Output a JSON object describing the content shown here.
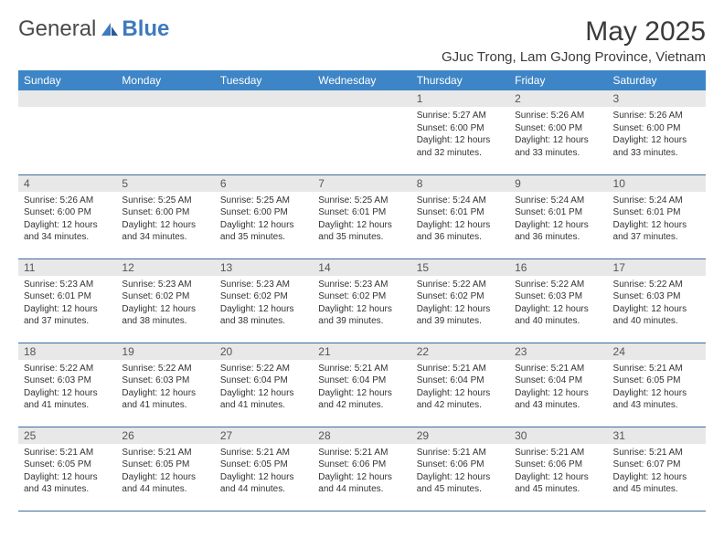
{
  "logo": {
    "text1": "General",
    "text2": "Blue"
  },
  "title": "May 2025",
  "location": "GJuc Trong, Lam GJong Province, Vietnam",
  "colors": {
    "header_bg": "#3d85c6",
    "header_text": "#ffffff",
    "daynum_bg": "#e8e8e8",
    "daynum_text": "#555555",
    "border": "#3d6b9e",
    "body_text": "#333333",
    "logo_gray": "#4a4a4a",
    "logo_blue": "#3d7abf"
  },
  "weekdays": [
    "Sunday",
    "Monday",
    "Tuesday",
    "Wednesday",
    "Thursday",
    "Friday",
    "Saturday"
  ],
  "weeks": [
    [
      null,
      null,
      null,
      null,
      {
        "n": "1",
        "sr": "5:27 AM",
        "ss": "6:00 PM",
        "dl": "12 hours and 32 minutes."
      },
      {
        "n": "2",
        "sr": "5:26 AM",
        "ss": "6:00 PM",
        "dl": "12 hours and 33 minutes."
      },
      {
        "n": "3",
        "sr": "5:26 AM",
        "ss": "6:00 PM",
        "dl": "12 hours and 33 minutes."
      }
    ],
    [
      {
        "n": "4",
        "sr": "5:26 AM",
        "ss": "6:00 PM",
        "dl": "12 hours and 34 minutes."
      },
      {
        "n": "5",
        "sr": "5:25 AM",
        "ss": "6:00 PM",
        "dl": "12 hours and 34 minutes."
      },
      {
        "n": "6",
        "sr": "5:25 AM",
        "ss": "6:00 PM",
        "dl": "12 hours and 35 minutes."
      },
      {
        "n": "7",
        "sr": "5:25 AM",
        "ss": "6:01 PM",
        "dl": "12 hours and 35 minutes."
      },
      {
        "n": "8",
        "sr": "5:24 AM",
        "ss": "6:01 PM",
        "dl": "12 hours and 36 minutes."
      },
      {
        "n": "9",
        "sr": "5:24 AM",
        "ss": "6:01 PM",
        "dl": "12 hours and 36 minutes."
      },
      {
        "n": "10",
        "sr": "5:24 AM",
        "ss": "6:01 PM",
        "dl": "12 hours and 37 minutes."
      }
    ],
    [
      {
        "n": "11",
        "sr": "5:23 AM",
        "ss": "6:01 PM",
        "dl": "12 hours and 37 minutes."
      },
      {
        "n": "12",
        "sr": "5:23 AM",
        "ss": "6:02 PM",
        "dl": "12 hours and 38 minutes."
      },
      {
        "n": "13",
        "sr": "5:23 AM",
        "ss": "6:02 PM",
        "dl": "12 hours and 38 minutes."
      },
      {
        "n": "14",
        "sr": "5:23 AM",
        "ss": "6:02 PM",
        "dl": "12 hours and 39 minutes."
      },
      {
        "n": "15",
        "sr": "5:22 AM",
        "ss": "6:02 PM",
        "dl": "12 hours and 39 minutes."
      },
      {
        "n": "16",
        "sr": "5:22 AM",
        "ss": "6:03 PM",
        "dl": "12 hours and 40 minutes."
      },
      {
        "n": "17",
        "sr": "5:22 AM",
        "ss": "6:03 PM",
        "dl": "12 hours and 40 minutes."
      }
    ],
    [
      {
        "n": "18",
        "sr": "5:22 AM",
        "ss": "6:03 PM",
        "dl": "12 hours and 41 minutes."
      },
      {
        "n": "19",
        "sr": "5:22 AM",
        "ss": "6:03 PM",
        "dl": "12 hours and 41 minutes."
      },
      {
        "n": "20",
        "sr": "5:22 AM",
        "ss": "6:04 PM",
        "dl": "12 hours and 41 minutes."
      },
      {
        "n": "21",
        "sr": "5:21 AM",
        "ss": "6:04 PM",
        "dl": "12 hours and 42 minutes."
      },
      {
        "n": "22",
        "sr": "5:21 AM",
        "ss": "6:04 PM",
        "dl": "12 hours and 42 minutes."
      },
      {
        "n": "23",
        "sr": "5:21 AM",
        "ss": "6:04 PM",
        "dl": "12 hours and 43 minutes."
      },
      {
        "n": "24",
        "sr": "5:21 AM",
        "ss": "6:05 PM",
        "dl": "12 hours and 43 minutes."
      }
    ],
    [
      {
        "n": "25",
        "sr": "5:21 AM",
        "ss": "6:05 PM",
        "dl": "12 hours and 43 minutes."
      },
      {
        "n": "26",
        "sr": "5:21 AM",
        "ss": "6:05 PM",
        "dl": "12 hours and 44 minutes."
      },
      {
        "n": "27",
        "sr": "5:21 AM",
        "ss": "6:05 PM",
        "dl": "12 hours and 44 minutes."
      },
      {
        "n": "28",
        "sr": "5:21 AM",
        "ss": "6:06 PM",
        "dl": "12 hours and 44 minutes."
      },
      {
        "n": "29",
        "sr": "5:21 AM",
        "ss": "6:06 PM",
        "dl": "12 hours and 45 minutes."
      },
      {
        "n": "30",
        "sr": "5:21 AM",
        "ss": "6:06 PM",
        "dl": "12 hours and 45 minutes."
      },
      {
        "n": "31",
        "sr": "5:21 AM",
        "ss": "6:07 PM",
        "dl": "12 hours and 45 minutes."
      }
    ]
  ],
  "labels": {
    "sunrise": "Sunrise:",
    "sunset": "Sunset:",
    "daylight": "Daylight:"
  }
}
